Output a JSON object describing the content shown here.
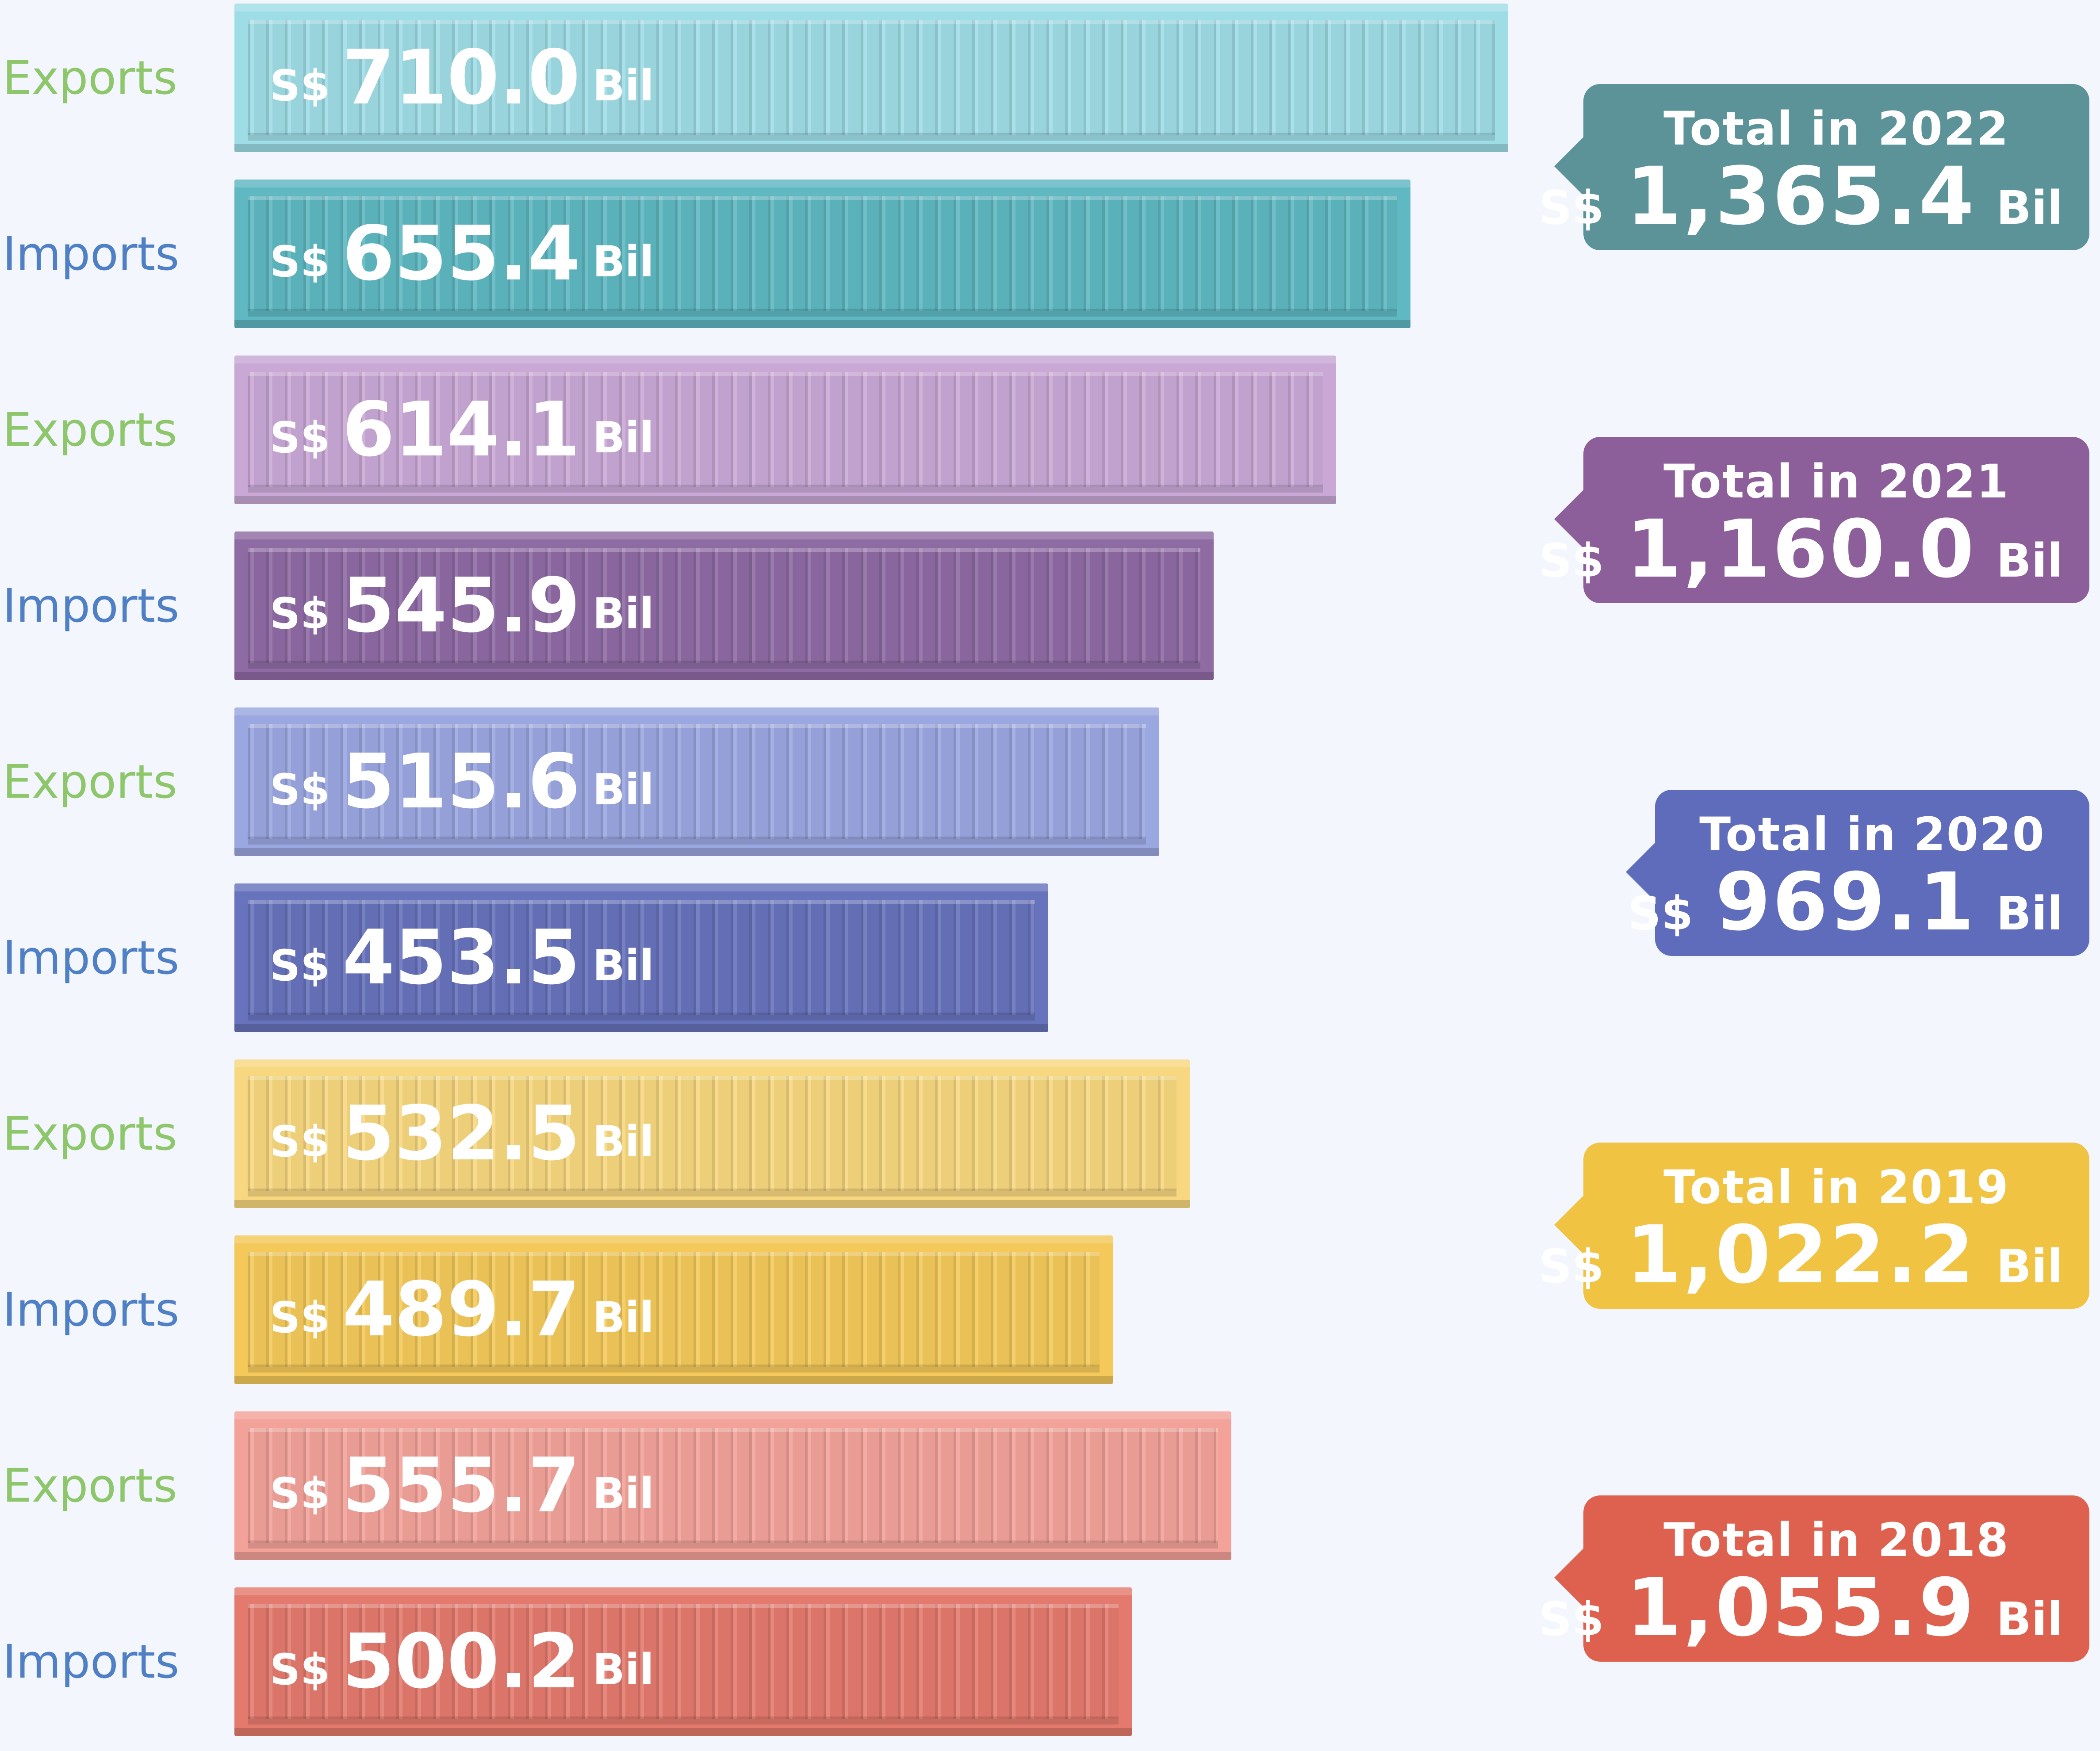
{
  "chart_data": {
    "type": "bar",
    "orientation": "horizontal",
    "categories": [
      "Exports",
      "Imports",
      "Exports",
      "Imports",
      "Exports",
      "Imports",
      "Exports",
      "Imports",
      "Exports",
      "Imports"
    ],
    "values": [
      710.0,
      655.4,
      614.1,
      545.9,
      515.6,
      453.5,
      532.5,
      489.7,
      555.7,
      500.2
    ],
    "value_labels": [
      "710.0",
      "655.4",
      "614.1",
      "545.9",
      "515.6",
      "453.5",
      "532.5",
      "489.7",
      "555.7",
      "500.2"
    ],
    "currency_label": "S$",
    "unit_label": "Bil",
    "bar_colors": [
      "#9fdde6",
      "#5fb8c2",
      "#c9a8d6",
      "#8f6ba4",
      "#9aa7e0",
      "#6773bc",
      "#f7d77f",
      "#f4c95a",
      "#f3a299",
      "#e47a6d"
    ],
    "label_colors": {
      "Exports": "#8dc66b",
      "Imports": "#4f7fc4"
    },
    "xlim": [
      0,
      710.0
    ],
    "grid": false,
    "totals": [
      {
        "title": "Total in 2022",
        "currency": "S$",
        "value": "1,365.4",
        "unit": "Bil",
        "color": "#5b9398"
      },
      {
        "title": "Total in 2021",
        "currency": "S$",
        "value": "1,160.0",
        "unit": "Bil",
        "color": "#8c5f9a"
      },
      {
        "title": "Total in 2020",
        "currency": "S$",
        "value": "969.1",
        "unit": "Bil",
        "color": "#5f6cbc"
      },
      {
        "title": "Total in 2019",
        "currency": "S$",
        "value": "1,022.2",
        "unit": "Bil",
        "color": "#f0c342"
      },
      {
        "title": "Total in 2018",
        "currency": "S$",
        "value": "1,055.9",
        "unit": "Bil",
        "color": "#de614f"
      }
    ]
  }
}
